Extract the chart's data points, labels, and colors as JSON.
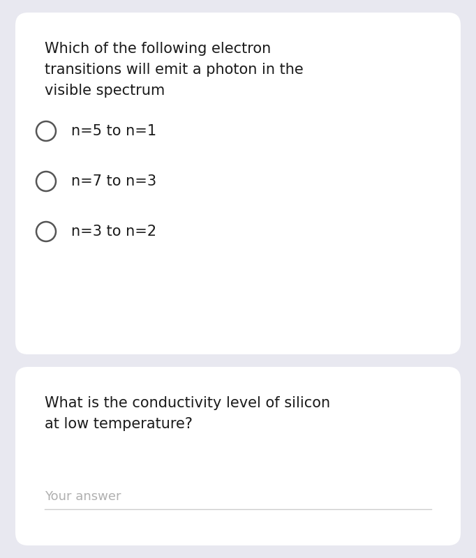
{
  "background_color": "#e8e8f0",
  "card1_color": "#ffffff",
  "card2_color": "#ffffff",
  "question1_lines": [
    "Which of the following electron",
    "transitions will emit a photon in the",
    "visible spectrum"
  ],
  "options": [
    "n=5 to n=1",
    "n=7 to n=3",
    "n=3 to n=2"
  ],
  "question2_lines": [
    "What is the conductivity level of silicon",
    "at low temperature?"
  ],
  "answer_placeholder": "Your answer",
  "text_color": "#1a1a1a",
  "placeholder_color": "#b0b0b0",
  "circle_edge_color": "#555555",
  "answer_line_color": "#cccccc",
  "question_fontsize": 15.0,
  "option_fontsize": 15.0,
  "placeholder_fontsize": 13.0
}
